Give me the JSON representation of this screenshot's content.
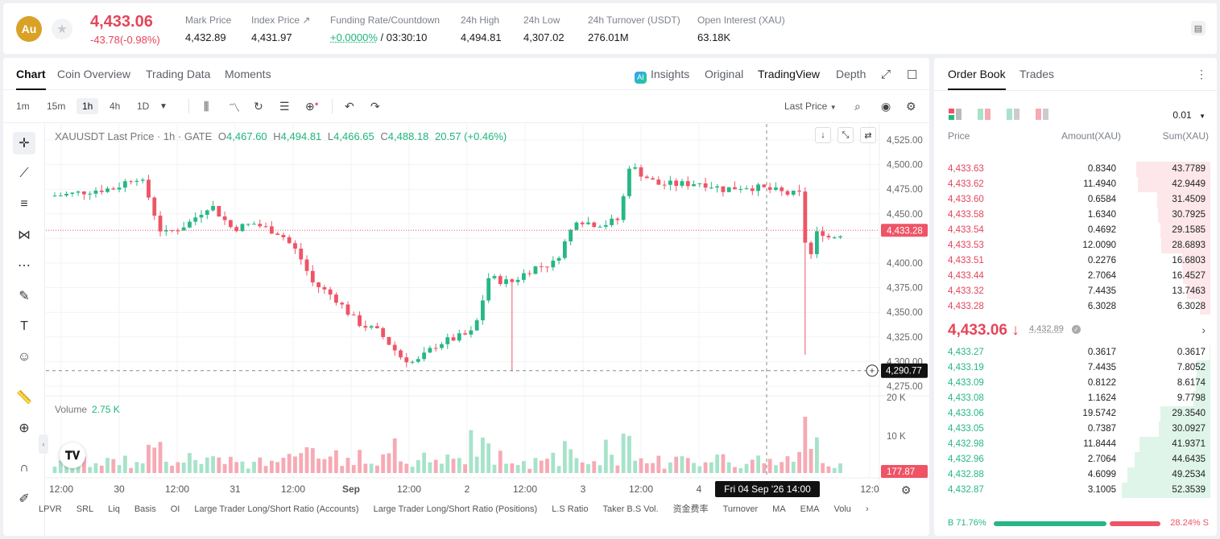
{
  "ticker": {
    "coin_badge": "Au",
    "last_price": "4,433.06",
    "change": "-43.78(-0.98%)",
    "stats": [
      {
        "label": "Mark Price",
        "value": "4,432.89"
      },
      {
        "label": "Index Price ↗",
        "value": "4,431.97"
      },
      {
        "label": "Funding Rate/Countdown",
        "value_green": "+0.0000%",
        "value": " / 03:30:10"
      },
      {
        "label": "24h High",
        "value": "4,494.81"
      },
      {
        "label": "24h Low",
        "value": "4,307.02"
      },
      {
        "label": "24h Turnover (USDT)",
        "value": "276.01M"
      },
      {
        "label": "Open Interest (XAU)",
        "value": "63.18K"
      }
    ]
  },
  "chart_tabs": [
    "Chart",
    "Coin Overview",
    "Trading Data",
    "Moments"
  ],
  "view_tabs": {
    "insights": "Insights",
    "original": "Original",
    "tradingview": "TradingView",
    "depth": "Depth"
  },
  "timeframes": [
    "1m",
    "15m",
    "1h",
    "4h",
    "1D"
  ],
  "price_type": "Last Price",
  "legend": {
    "symbol": "XAUUSDT Last Price · 1h · GATE",
    "o": "4,467.60",
    "h": "4,494.81",
    "l": "4,466.65",
    "c": "4,488.18",
    "chg": "20.57 (+0.46%)"
  },
  "volume_legend": {
    "label": "Volume",
    "value": "2.75 K"
  },
  "price_axis": [
    "4,525.00",
    "4,500.00",
    "4,475.00",
    "4,450.00",
    "4,400.00",
    "4,375.00",
    "4,350.00",
    "4,325.00",
    "4,300.00",
    "4,275.00"
  ],
  "volume_axis": [
    "20 K",
    "10 K"
  ],
  "time_axis": [
    "12:00",
    "30",
    "12:00",
    "31",
    "12:00",
    "Sep",
    "12:00",
    "2",
    "12:00",
    "3",
    "12:00",
    "4",
    "12:0"
  ],
  "current_price_label": "4,433.28",
  "crosshair_price_label": "4,290.77",
  "crosshair_time_label": "Fri 04 Sep '26   14:00",
  "volume_value_label": "177.87",
  "indicators": [
    "LPVR",
    "SRL",
    "Liq",
    "Basis",
    "OI",
    "Large Trader Long/Short Ratio (Accounts)",
    "Large Trader Long/Short Ratio (Positions)",
    "L.S Ratio",
    "Taker B.S Vol.",
    "资金费率",
    "Turnover",
    "MA",
    "EMA",
    "Volu"
  ],
  "colors": {
    "up": "#26b785",
    "down": "#ef5466",
    "up_light": "#a6e3ca",
    "down_light": "#f6aab4"
  },
  "orderbook": {
    "tabs": [
      "Order Book",
      "Trades"
    ],
    "precision": "0.01",
    "headers": {
      "price": "Price",
      "amount": "Amount(XAU)",
      "sum": "Sum(XAU)"
    },
    "asks": [
      {
        "price": "4,433.63",
        "amount": "0.8340",
        "sum": "43.7789",
        "depth": 0.84
      },
      {
        "price": "4,433.62",
        "amount": "11.4940",
        "sum": "42.9449",
        "depth": 0.82
      },
      {
        "price": "4,433.60",
        "amount": "0.6584",
        "sum": "31.4509",
        "depth": 0.6
      },
      {
        "price": "4,433.58",
        "amount": "1.6340",
        "sum": "30.7925",
        "depth": 0.59
      },
      {
        "price": "4,433.54",
        "amount": "0.4692",
        "sum": "29.1585",
        "depth": 0.56
      },
      {
        "price": "4,433.53",
        "amount": "12.0090",
        "sum": "28.6893",
        "depth": 0.55
      },
      {
        "price": "4,433.51",
        "amount": "0.2276",
        "sum": "16.6803",
        "depth": 0.32
      },
      {
        "price": "4,433.44",
        "amount": "2.7064",
        "sum": "16.4527",
        "depth": 0.31
      },
      {
        "price": "4,433.32",
        "amount": "7.4435",
        "sum": "13.7463",
        "depth": 0.26
      },
      {
        "price": "4,433.28",
        "amount": "6.3028",
        "sum": "6.3028",
        "depth": 0.12
      }
    ],
    "mid_price": "4,433.06 ↓",
    "mark_price": "4,432.89",
    "bids": [
      {
        "price": "4,433.27",
        "amount": "0.3617",
        "sum": "0.3617",
        "depth": 0.01
      },
      {
        "price": "4,433.19",
        "amount": "7.4435",
        "sum": "7.8052",
        "depth": 0.15
      },
      {
        "price": "4,433.09",
        "amount": "0.8122",
        "sum": "8.6174",
        "depth": 0.16
      },
      {
        "price": "4,433.08",
        "amount": "1.1624",
        "sum": "9.7798",
        "depth": 0.19
      },
      {
        "price": "4,433.06",
        "amount": "19.5742",
        "sum": "29.3540",
        "depth": 0.56
      },
      {
        "price": "4,433.05",
        "amount": "0.7387",
        "sum": "30.0927",
        "depth": 0.58
      },
      {
        "price": "4,432.98",
        "amount": "11.8444",
        "sum": "41.9371",
        "depth": 0.8
      },
      {
        "price": "4,432.96",
        "amount": "2.7064",
        "sum": "44.6435",
        "depth": 0.85
      },
      {
        "price": "4,432.88",
        "amount": "4.6099",
        "sum": "49.2534",
        "depth": 0.94
      },
      {
        "price": "4,432.87",
        "amount": "3.1005",
        "sum": "52.3539",
        "depth": 1.0
      }
    ],
    "buy_ratio": "B 71.76%",
    "sell_ratio": "28.24% S",
    "buy_fraction": 0.7176
  }
}
